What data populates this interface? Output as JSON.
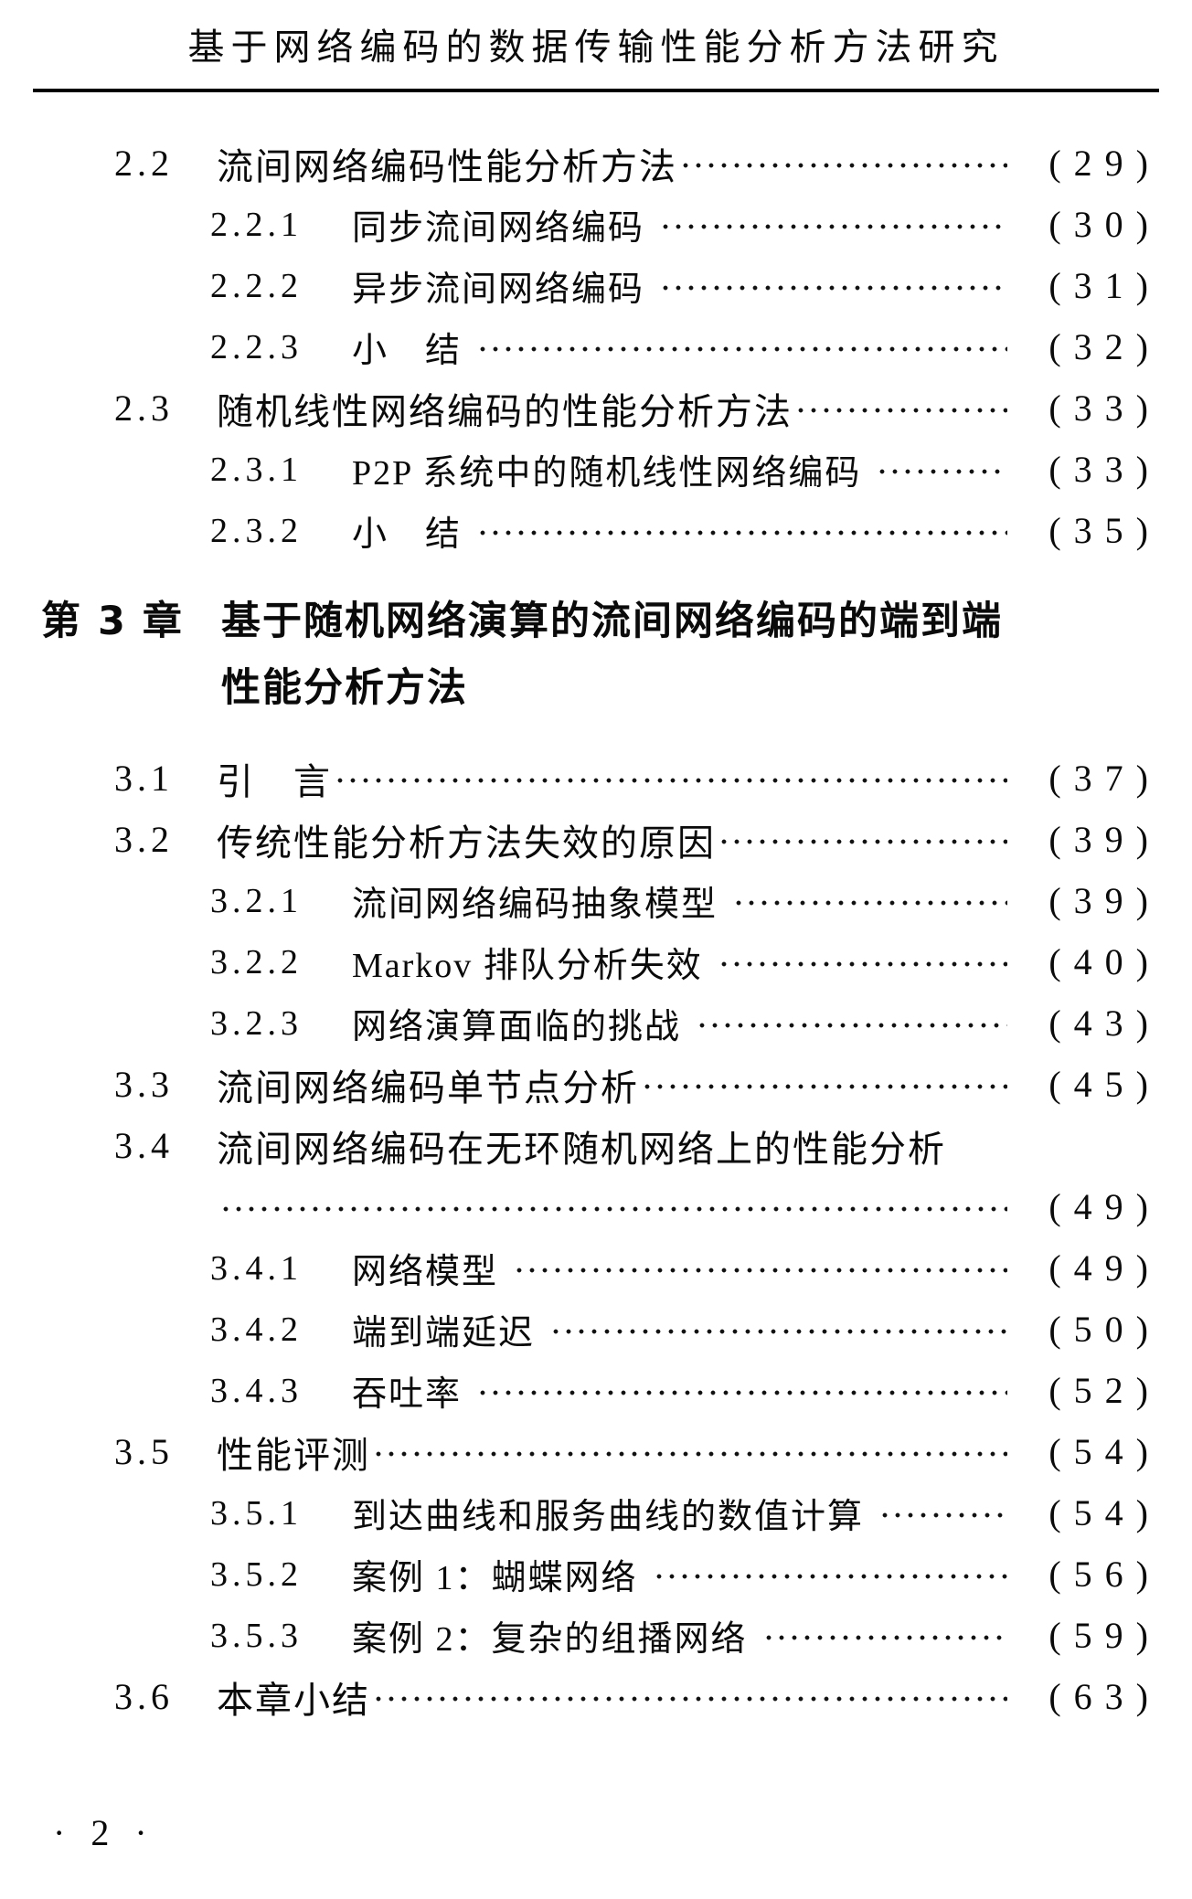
{
  "header": {
    "running_title": "基于网络编码的数据传输性能分析方法研究"
  },
  "toc": {
    "entries": [
      {
        "type": "entry",
        "level": 1,
        "num": "2.2",
        "title": "流间网络编码性能分析方法",
        "page": "29",
        "page_display": "( 2 9 )"
      },
      {
        "type": "entry",
        "level": 2,
        "num": "2.2.1",
        "title": "同步流间网络编码",
        "page": "30",
        "page_display": "( 3 0 )"
      },
      {
        "type": "entry",
        "level": 2,
        "num": "2.2.2",
        "title": "异步流间网络编码",
        "page": "31",
        "page_display": "( 3 1 )"
      },
      {
        "type": "entry",
        "level": 2,
        "num": "2.2.3",
        "title": "小　结",
        "page": "32",
        "page_display": "( 3 2 )"
      },
      {
        "type": "entry",
        "level": 1,
        "num": "2.3",
        "title": "随机线性网络编码的性能分析方法",
        "page": "33",
        "page_display": "( 3 3 )"
      },
      {
        "type": "entry",
        "level": 2,
        "num": "2.3.1",
        "title": "P2P 系统中的随机线性网络编码",
        "page": "33",
        "page_display": "( 3 3 )"
      },
      {
        "type": "entry",
        "level": 2,
        "num": "2.3.2",
        "title": "小　结",
        "page": "35",
        "page_display": "( 3 5 )"
      },
      {
        "type": "chapter",
        "num": "第 3 章",
        "lines": [
          "基于随机网络演算的流间网络编码的端到端",
          "性能分析方法"
        ]
      },
      {
        "type": "entry",
        "level": 1,
        "num": "3.1",
        "title": "引　言",
        "page": "37",
        "page_display": "( 3 7 )"
      },
      {
        "type": "entry",
        "level": 1,
        "num": "3.2",
        "title": "传统性能分析方法失效的原因",
        "page": "39",
        "page_display": "( 3 9 )"
      },
      {
        "type": "entry",
        "level": 2,
        "num": "3.2.1",
        "title": "流间网络编码抽象模型",
        "page": "39",
        "page_display": "( 3 9 )"
      },
      {
        "type": "entry",
        "level": 2,
        "num": "3.2.2",
        "title": "Markov 排队分析失效",
        "page": "40",
        "page_display": "( 4 0 )"
      },
      {
        "type": "entry",
        "level": 2,
        "num": "3.2.3",
        "title": "网络演算面临的挑战",
        "page": "43",
        "page_display": "( 4 3 )"
      },
      {
        "type": "entry",
        "level": 1,
        "num": "3.3",
        "title": "流间网络编码单节点分析",
        "page": "45",
        "page_display": "( 4 5 )"
      },
      {
        "type": "entry",
        "level": 1,
        "num": "3.4",
        "title": "流间网络编码在无环随机网络上的性能分析",
        "page": null,
        "page_display": null,
        "nodots": true
      },
      {
        "type": "dotsline",
        "page": "49",
        "page_display": "( 4 9 )"
      },
      {
        "type": "entry",
        "level": 2,
        "num": "3.4.1",
        "title": "网络模型",
        "page": "49",
        "page_display": "( 4 9 )"
      },
      {
        "type": "entry",
        "level": 2,
        "num": "3.4.2",
        "title": "端到端延迟",
        "page": "50",
        "page_display": "( 5 0 )"
      },
      {
        "type": "entry",
        "level": 2,
        "num": "3.4.3",
        "title": "吞吐率",
        "page": "52",
        "page_display": "( 5 2 )"
      },
      {
        "type": "entry",
        "level": 1,
        "num": "3.5",
        "title": "性能评测",
        "page": "54",
        "page_display": "( 5 4 )"
      },
      {
        "type": "entry",
        "level": 2,
        "num": "3.5.1",
        "title": "到达曲线和服务曲线的数值计算",
        "page": "54",
        "page_display": "( 5 4 )"
      },
      {
        "type": "entry",
        "level": 2,
        "num": "3.5.2",
        "title": "案例 1：蝴蝶网络",
        "page": "56",
        "page_display": "( 5 6 )"
      },
      {
        "type": "entry",
        "level": 2,
        "num": "3.5.3",
        "title": "案例 2：复杂的组播网络",
        "page": "59",
        "page_display": "( 5 9 )"
      },
      {
        "type": "entry",
        "level": 1,
        "num": "3.6",
        "title": "本章小结",
        "page": "63",
        "page_display": "( 6 3 )"
      }
    ]
  },
  "footer": {
    "text": "· 2 ·"
  }
}
